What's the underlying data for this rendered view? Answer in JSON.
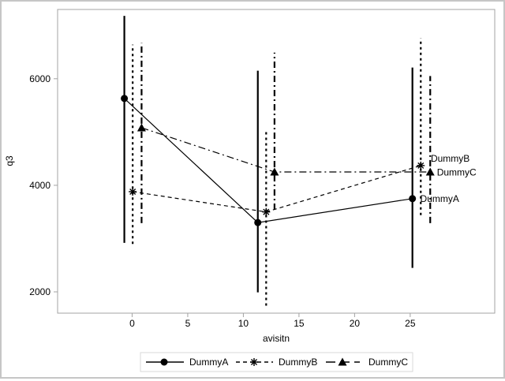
{
  "figure": {
    "background": "#ffffff",
    "border_color": "#c6c6c6",
    "axis_color": "#a3a3a3",
    "data_color": "#000000",
    "legend_border_color": "#d9d9d9"
  },
  "chart_data": {
    "type": "line",
    "title": "",
    "xlabel": "avisitn",
    "ylabel": "q3",
    "x_ticks": [
      0,
      5,
      10,
      15,
      20,
      25
    ],
    "y_ticks": [
      2000,
      4000,
      6000
    ],
    "xlim": [
      -6.7,
      32.6
    ],
    "ylim": [
      1600,
      7300
    ],
    "grid": false,
    "legend_position": "bottom-center",
    "error_bars": true,
    "series": [
      {
        "name": "DummyA",
        "marker": "circle",
        "line_style": "solid",
        "error_style": "solid",
        "points": [
          {
            "x": -0.7,
            "y": 5630,
            "lo": 2920,
            "hi": 7180
          },
          {
            "x": 11.3,
            "y": 3300,
            "lo": 1990,
            "hi": 6150
          },
          {
            "x": 25.2,
            "y": 3750,
            "lo": 2450,
            "hi": 6210
          }
        ],
        "label": {
          "text": "DummyA",
          "x": 25.9,
          "y": 3750
        }
      },
      {
        "name": "DummyB",
        "marker": "asterisk",
        "line_style": "dashed",
        "error_style": "dotted",
        "points": [
          {
            "x": 0.05,
            "y": 3880,
            "lo": 2900,
            "hi": 6640
          },
          {
            "x": 12.05,
            "y": 3500,
            "lo": 1740,
            "hi": 5010
          },
          {
            "x": 25.95,
            "y": 4370,
            "lo": 3440,
            "hi": 6760
          }
        ],
        "label": {
          "text": "DummyB",
          "x": 26.85,
          "y": 4500
        }
      },
      {
        "name": "DummyC",
        "marker": "triangle",
        "line_style": "dashdot",
        "error_style": "dashdot",
        "points": [
          {
            "x": 0.85,
            "y": 5080,
            "lo": 3290,
            "hi": 6670
          },
          {
            "x": 12.8,
            "y": 4250,
            "lo": 3540,
            "hi": 6490
          },
          {
            "x": 26.8,
            "y": 4250,
            "lo": 3290,
            "hi": 6050
          }
        ],
        "label": {
          "text": "DummyC",
          "x": 27.4,
          "y": 4240
        }
      }
    ]
  }
}
